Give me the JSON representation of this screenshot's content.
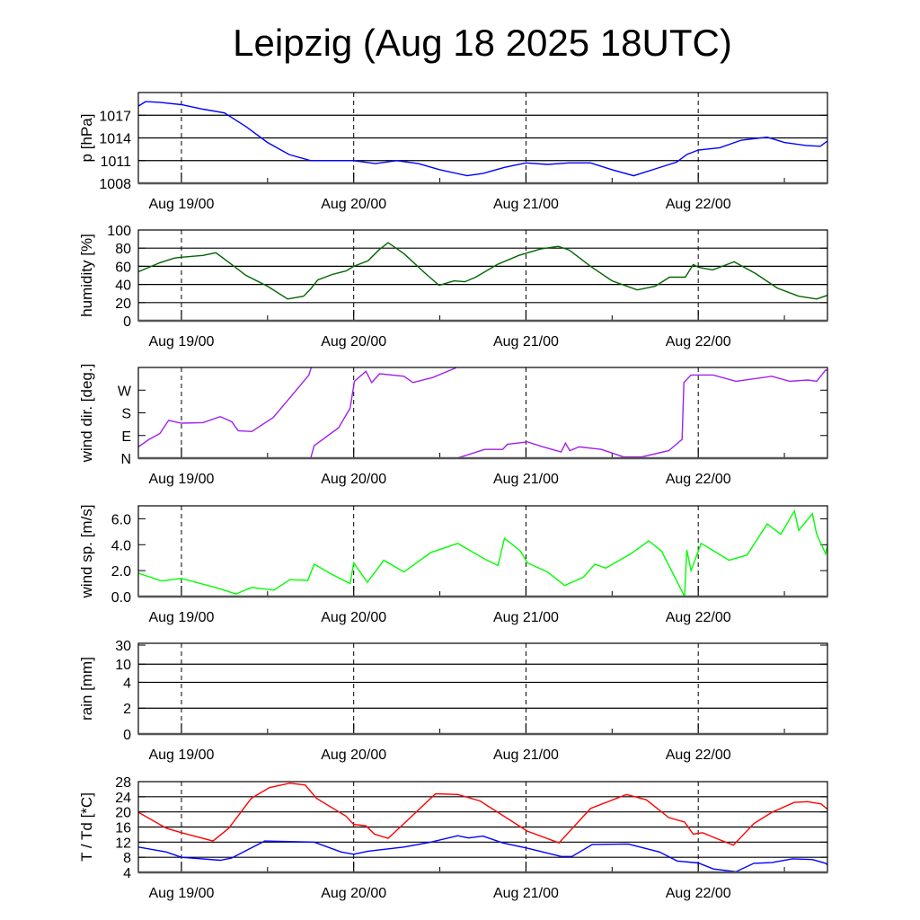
{
  "title": "Leipzig (Aug 18 2025 18UTC)",
  "x_axis": {
    "units": "hours since Aug 18 2025 18UTC",
    "xlim": [
      0,
      96
    ],
    "major_ticks": [
      6,
      30,
      54,
      78
    ],
    "minor_ticks": [
      18,
      42,
      66,
      90
    ],
    "tick_labels": [
      "Aug 19/00",
      "Aug 20/00",
      "Aug 21/00",
      "Aug 22/00"
    ]
  },
  "chart_data": [
    {
      "type": "line",
      "id": "pressure",
      "ylabel": "p [hPa]",
      "ylim": [
        1008,
        1020
      ],
      "yticks": [
        1008,
        1011,
        1014,
        1017
      ],
      "ytick_labels": [
        "1008",
        "1011",
        "1014",
        "1017"
      ],
      "gridlines": [
        1011,
        1014,
        1017
      ],
      "series": [
        {
          "name": "pressure",
          "color": "#0000ff",
          "x": [
            0,
            1,
            3,
            6,
            9,
            12,
            15,
            18,
            21,
            24,
            27,
            30,
            33,
            36,
            39,
            42,
            45.8,
            48,
            51,
            54,
            57,
            60,
            63,
            66,
            69,
            72,
            75,
            76.4,
            78,
            81,
            84,
            87.6,
            90,
            93,
            95,
            96
          ],
          "y": [
            1018.2,
            1018.8,
            1018.7,
            1018.4,
            1017.8,
            1017.3,
            1015.5,
            1013.4,
            1011.8,
            1011.0,
            1011.0,
            1011.0,
            1010.6,
            1011.0,
            1010.6,
            1009.8,
            1009.0,
            1009.3,
            1010.1,
            1010.7,
            1010.5,
            1010.7,
            1010.7,
            1009.8,
            1009.0,
            1009.9,
            1010.8,
            1011.8,
            1012.4,
            1012.7,
            1013.7,
            1014.1,
            1013.4,
            1013.0,
            1012.9,
            1013.6
          ]
        }
      ]
    },
    {
      "type": "line",
      "id": "humidity",
      "ylabel": "humidity [%]",
      "ylim": [
        0,
        100
      ],
      "yticks": [
        0,
        20,
        40,
        60,
        80,
        100
      ],
      "ytick_labels": [
        "0",
        "20",
        "40",
        "60",
        "80",
        "100"
      ],
      "gridlines": [
        20,
        40,
        60,
        80
      ],
      "series": [
        {
          "name": "humidity",
          "color": "#006400",
          "x": [
            0,
            3,
            5,
            6,
            9,
            10.8,
            13,
            15,
            18,
            20.8,
            23,
            24,
            25,
            27,
            29,
            30,
            32,
            33.5,
            34.8,
            37,
            40,
            41.9,
            44,
            45.5,
            47,
            50,
            53,
            56,
            58.5,
            60,
            63,
            66,
            69.5,
            72,
            74,
            76.2,
            77.3,
            78,
            80,
            83,
            86,
            89,
            92,
            94.5,
            96
          ],
          "y": [
            54,
            64,
            69,
            70,
            72,
            75,
            62,
            50,
            38,
            24,
            27,
            35,
            45,
            51,
            55,
            60,
            66,
            78,
            86,
            74,
            52,
            39,
            44,
            43,
            48,
            62,
            72,
            79,
            82,
            78,
            60,
            44,
            34,
            38,
            48,
            48,
            62,
            59,
            56,
            65,
            52,
            36,
            27,
            24,
            28
          ]
        }
      ]
    },
    {
      "type": "line",
      "id": "wind_direction",
      "ylabel": "wind dir. [deg.]",
      "ylim": [
        0,
        360
      ],
      "yticks": [
        0,
        90,
        180,
        270
      ],
      "ytick_labels": [
        "N",
        "E",
        "S",
        "W"
      ],
      "gridlines": [],
      "series": [
        {
          "name": "wind direction",
          "color": "#a020f0",
          "x": [
            0,
            1.5,
            3,
            4.2,
            6,
            9,
            11.4,
            13,
            13.9,
            15.8,
            18.8,
            21.4,
            23.75,
            24.2
          ],
          "y": [
            45,
            75,
            98,
            150,
            139,
            141,
            165,
            145,
            109,
            106,
            162,
            250,
            330,
            370
          ]
        },
        {
          "name": "wind direction",
          "color": "#a020f0",
          "x": [
            23.9,
            24.5,
            27.9,
            29.5,
            30.1,
            31.7,
            32.5,
            33.6,
            37,
            38.25,
            41,
            44.2,
            44.5
          ],
          "y": [
            -10,
            50,
            121,
            198,
            305,
            345,
            300,
            335,
            325,
            300,
            320,
            358,
            370
          ]
        },
        {
          "name": "wind direction",
          "color": "#a020f0",
          "x": [
            44.4,
            48.25,
            50.75,
            51.4,
            54.2,
            56.4,
            58.9,
            59.5,
            60.1,
            61.4,
            64.5,
            67.6,
            70.1,
            73.9,
            75.75,
            76,
            77,
            80.1,
            83.25,
            88.25,
            90.75,
            93.25,
            94.5,
            95.75,
            96.4
          ],
          "y": [
            0,
            35,
            35,
            55,
            65,
            45,
            25,
            60,
            30,
            45,
            35,
            5,
            5,
            30,
            75,
            300,
            330,
            330,
            305,
            325,
            305,
            310,
            305,
            350,
            345
          ]
        }
      ]
    },
    {
      "type": "line",
      "id": "wind_speed",
      "ylabel": "wind sp. [m/s]",
      "ylim": [
        0,
        7
      ],
      "yticks": [
        0,
        2,
        4,
        6
      ],
      "ytick_labels": [
        "0.0",
        "2.0",
        "4.0",
        "6.0"
      ],
      "gridlines": [],
      "series": [
        {
          "name": "wind speed",
          "color": "#00ff00",
          "x": [
            0,
            3.25,
            6,
            10.75,
            13.6,
            15.75,
            18.9,
            21.1,
            23.6,
            24.5,
            27,
            29.5,
            30,
            31.9,
            34.2,
            37,
            40.75,
            44.5,
            48.25,
            50.1,
            51,
            53.25,
            54.2,
            57,
            59.4,
            62,
            63.6,
            65.1,
            68.6,
            71.1,
            72.9,
            76.1,
            76.4,
            77,
            78.4,
            82.3,
            84.8,
            87.6,
            89.5,
            91.4,
            92,
            93.9,
            94.5,
            95.75,
            96.4
          ],
          "y": [
            1.8,
            1.2,
            1.4,
            0.7,
            0.2,
            0.7,
            0.5,
            1.3,
            1.25,
            2.5,
            1.7,
            1.0,
            2.6,
            1.1,
            2.8,
            1.9,
            3.4,
            4.1,
            2.9,
            2.4,
            4.5,
            3.5,
            2.6,
            1.9,
            0.85,
            1.5,
            2.5,
            2.2,
            3.3,
            4.3,
            3.5,
            0.0,
            3.6,
            2.0,
            4.1,
            2.8,
            3.2,
            5.6,
            4.8,
            6.6,
            5.1,
            6.4,
            4.8,
            3.3,
            4.9
          ]
        }
      ]
    },
    {
      "type": "line",
      "id": "rain",
      "ylabel": "rain [mm]",
      "ylim": [
        0,
        30
      ],
      "scale": "piecewise",
      "yticks": [
        0,
        2,
        4,
        10,
        30
      ],
      "ytick_labels": [
        "0",
        "2",
        "4",
        "10",
        "30"
      ],
      "gridlines": [
        2,
        4,
        10
      ],
      "series": [
        {
          "name": "rain",
          "color": "#00008b",
          "x": [
            0,
            96
          ],
          "y": [
            0,
            0
          ]
        }
      ]
    },
    {
      "type": "line",
      "id": "temperature",
      "ylabel": "T / Td [*C]",
      "ylim": [
        4,
        28
      ],
      "yticks": [
        4,
        8,
        12,
        16,
        20,
        24,
        28
      ],
      "ytick_labels": [
        "4",
        "8",
        "12",
        "16",
        "20",
        "24",
        "28"
      ],
      "gridlines": [
        8,
        12,
        16,
        20,
        24
      ],
      "series": [
        {
          "name": "T",
          "color": "#ff0000",
          "x": [
            0,
            3.9,
            6,
            10.4,
            12.6,
            15.75,
            18.25,
            21.1,
            23.25,
            24.8,
            28.9,
            30,
            31.7,
            32.9,
            34.8,
            37,
            41.4,
            44.5,
            47.6,
            54.2,
            58.6,
            63,
            68,
            70.75,
            73.9,
            76.1,
            77.3,
            78.6,
            80.75,
            82.9,
            85.75,
            88.25,
            91.4,
            93.25,
            95.1,
            96.4
          ],
          "y": [
            19.9,
            15.7,
            14.5,
            12.3,
            15.7,
            23.6,
            26.4,
            27.6,
            27.1,
            23.6,
            18.9,
            16.7,
            16.3,
            14.1,
            13.0,
            16.9,
            24.8,
            24.6,
            22.9,
            14.9,
            11.8,
            20.9,
            24.6,
            23.2,
            18.5,
            17.3,
            14.1,
            14.5,
            12.8,
            11.2,
            16.9,
            19.9,
            22.5,
            22.7,
            22.1,
            20.1
          ]
        },
        {
          "name": "Td",
          "color": "#0000ff",
          "x": [
            0,
            3.9,
            6,
            11.4,
            13,
            17.6,
            24.5,
            28.25,
            30,
            32,
            37,
            40.75,
            44.5,
            46,
            48,
            50.75,
            54.2,
            58.9,
            60.4,
            63.25,
            68.25,
            72.6,
            75.1,
            78,
            80.1,
            83.25,
            85.75,
            88.25,
            91.1,
            93.9,
            95.75,
            96.4
          ],
          "y": [
            10.7,
            9.4,
            8.0,
            7.2,
            7.8,
            12.3,
            12.0,
            9.4,
            8.8,
            9.6,
            10.7,
            12.0,
            13.7,
            13.1,
            13.6,
            11.8,
            10.4,
            8.2,
            8.2,
            11.4,
            11.5,
            9.4,
            7.0,
            6.5,
            4.9,
            4.2,
            6.4,
            6.6,
            7.6,
            7.4,
            6.4,
            5.4
          ]
        }
      ]
    }
  ]
}
